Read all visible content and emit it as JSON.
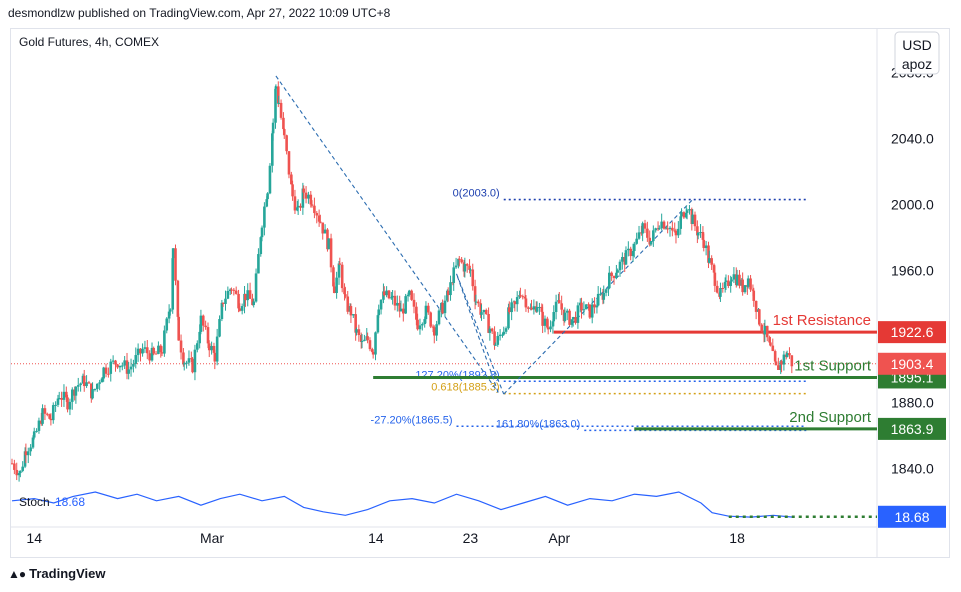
{
  "header": {
    "published": "desmondlzw published on TradingView.com, Apr 27, 2022 10:09 UTC+8"
  },
  "footer": {
    "brand": "TradingView",
    "logo_icon": "tradingview-logo-icon"
  },
  "chart_data": {
    "type": "candlestick",
    "title": "Gold Futures, 4h, COMEX",
    "currency": "USD",
    "scale_mode": "apoz",
    "y_ticks": [
      1840.0,
      1880.0,
      1920.0,
      1960.0,
      2000.0,
      2040.0,
      2080.0
    ],
    "y_tick_labels": [
      "1840.0",
      "1880.0",
      "1920.0",
      "1960.0",
      "2000.0",
      "2040.0",
      "2080.0"
    ],
    "ylim": [
      1833.5,
      2106.5
    ],
    "x_ticks": [
      {
        "label": "14",
        "x": 8
      },
      {
        "label": "Mar",
        "x": 72
      },
      {
        "label": "14",
        "x": 131
      },
      {
        "label": "23",
        "x": 165
      },
      {
        "label": "Apr",
        "x": 197
      },
      {
        "label": "18",
        "x": 261
      }
    ],
    "xlim": [
      0,
      311
    ],
    "price_path": [
      [
        0,
        1843
      ],
      [
        3,
        1837
      ],
      [
        5,
        1852
      ],
      [
        8,
        1858
      ],
      [
        11,
        1873
      ],
      [
        14,
        1870
      ],
      [
        17,
        1885
      ],
      [
        20,
        1880
      ],
      [
        23,
        1890
      ],
      [
        26,
        1893
      ],
      [
        29,
        1885
      ],
      [
        33,
        1900
      ],
      [
        38,
        1905
      ],
      [
        42,
        1900
      ],
      [
        47,
        1912
      ],
      [
        51,
        1908
      ],
      [
        54,
        1912
      ],
      [
        57,
        1940
      ],
      [
        58,
        1975
      ],
      [
        60,
        1920
      ],
      [
        62,
        1905
      ],
      [
        65,
        1902
      ],
      [
        68,
        1930
      ],
      [
        71,
        1915
      ],
      [
        73,
        1908
      ],
      [
        76,
        1942
      ],
      [
        79,
        1950
      ],
      [
        82,
        1940
      ],
      [
        84,
        1945
      ],
      [
        87,
        1940
      ],
      [
        90,
        1990
      ],
      [
        92,
        2010
      ],
      [
        94,
        2050
      ],
      [
        95,
        2072
      ],
      [
        96,
        2062
      ],
      [
        98,
        2040
      ],
      [
        101,
        2005
      ],
      [
        103,
        1995
      ],
      [
        105,
        2008
      ],
      [
        108,
        2003
      ],
      [
        111,
        1990
      ],
      [
        114,
        1975
      ],
      [
        116,
        1950
      ],
      [
        118,
        1962
      ],
      [
        120,
        1940
      ],
      [
        122,
        1935
      ],
      [
        124,
        1922
      ],
      [
        126,
        1915
      ],
      [
        128,
        1918
      ],
      [
        130,
        1912
      ],
      [
        132,
        1940
      ],
      [
        134,
        1945
      ],
      [
        137,
        1942
      ],
      [
        140,
        1935
      ],
      [
        143,
        1944
      ],
      [
        146,
        1928
      ],
      [
        149,
        1935
      ],
      [
        152,
        1925
      ],
      [
        155,
        1938
      ],
      [
        157,
        1945
      ],
      [
        159,
        1958
      ],
      [
        161,
        1966
      ],
      [
        163,
        1962
      ],
      [
        165,
        1960
      ],
      [
        167,
        1942
      ],
      [
        169,
        1935
      ],
      [
        172,
        1925
      ],
      [
        174,
        1915
      ],
      [
        177,
        1925
      ],
      [
        179,
        1935
      ],
      [
        181,
        1938
      ],
      [
        183,
        1948
      ],
      [
        185,
        1942
      ],
      [
        187,
        1935
      ],
      [
        189,
        1940
      ],
      [
        191,
        1930
      ],
      [
        193,
        1925
      ],
      [
        195,
        1935
      ],
      [
        197,
        1940
      ],
      [
        199,
        1932
      ],
      [
        202,
        1930
      ],
      [
        205,
        1938
      ],
      [
        208,
        1935
      ],
      [
        211,
        1942
      ],
      [
        213,
        1946
      ],
      [
        215,
        1955
      ],
      [
        218,
        1962
      ],
      [
        221,
        1968
      ],
      [
        224,
        1975
      ],
      [
        227,
        1985
      ],
      [
        230,
        1978
      ],
      [
        233,
        1990
      ],
      [
        236,
        1988
      ],
      [
        239,
        1980
      ],
      [
        241,
        1993
      ],
      [
        243,
        2000
      ],
      [
        245,
        1990
      ],
      [
        247,
        1983
      ],
      [
        249,
        1978
      ],
      [
        251,
        1965
      ],
      [
        253,
        1955
      ],
      [
        255,
        1945
      ],
      [
        257,
        1950
      ],
      [
        259,
        1958
      ],
      [
        261,
        1955
      ],
      [
        263,
        1950
      ],
      [
        265,
        1955
      ],
      [
        267,
        1945
      ],
      [
        269,
        1930
      ],
      [
        271,
        1922
      ],
      [
        273,
        1912
      ],
      [
        275,
        1900
      ],
      [
        277,
        1905
      ],
      [
        279,
        1910
      ],
      [
        281,
        1903
      ]
    ],
    "zigzag_lines": [
      {
        "x1": 95,
        "y1": 2078,
        "x2": 175,
        "y2": 1886
      },
      {
        "x1": 175,
        "y1": 1886,
        "x2": 160,
        "y2": 1958
      },
      {
        "x1": 160,
        "y1": 1958,
        "x2": 177,
        "y2": 1885
      },
      {
        "x1": 177,
        "y1": 1885,
        "x2": 245,
        "y2": 2003
      }
    ],
    "levels": [
      {
        "label": "1st Resistance",
        "price": 1922.6,
        "value_label": "1922.6",
        "color": "#e53935",
        "style": "solid",
        "x_start": 195,
        "x_end": 286
      },
      {
        "label": "1st Support",
        "price": 1895.1,
        "value_label": "1895.1",
        "color": "#2e7d32",
        "style": "solid",
        "x_start": 130,
        "x_end": 286
      },
      {
        "label": "2nd Support",
        "price": 1863.9,
        "value_label": "1863.9",
        "color": "#2e7d32",
        "style": "solid",
        "x_start": 224,
        "x_end": 286
      }
    ],
    "current_price": {
      "price": 1903.4,
      "label": "1903.4",
      "color": "#ef5350"
    },
    "fib_lines": [
      {
        "label": "0(2003.0)",
        "price": 2003.0,
        "color": "#1e40af",
        "x_start": 177,
        "x_end": 286
      },
      {
        "label": "127.20%(1892.8)",
        "price": 1892.8,
        "color": "#2563eb",
        "x_start": 177,
        "x_end": 286
      },
      {
        "label": "0.618(1885.3)",
        "price": 1885.3,
        "color": "#d4a017",
        "x_start": 177,
        "x_end": 286
      },
      {
        "label": "-27.20%(1865.5)",
        "price": 1865.5,
        "color": "#2563eb",
        "x_start": 160,
        "x_end": 286
      },
      {
        "label": "161.80%(1863.0)",
        "price": 1863.0,
        "color": "#2563eb",
        "x_start": 206,
        "x_end": 286
      }
    ],
    "stoch": {
      "label": "Stoch",
      "value": 18.68,
      "value_label": "18.68",
      "color": "#2962ff",
      "values": [
        [
          0,
          55
        ],
        [
          8,
          60
        ],
        [
          15,
          50
        ],
        [
          22,
          65
        ],
        [
          30,
          75
        ],
        [
          38,
          60
        ],
        [
          45,
          70
        ],
        [
          52,
          55
        ],
        [
          60,
          65
        ],
        [
          68,
          45
        ],
        [
          75,
          60
        ],
        [
          82,
          70
        ],
        [
          90,
          55
        ],
        [
          98,
          65
        ],
        [
          105,
          40
        ],
        [
          112,
          30
        ],
        [
          120,
          22
        ],
        [
          128,
          35
        ],
        [
          136,
          55
        ],
        [
          144,
          60
        ],
        [
          152,
          50
        ],
        [
          160,
          70
        ],
        [
          168,
          55
        ],
        [
          176,
          35
        ],
        [
          184,
          50
        ],
        [
          192,
          65
        ],
        [
          200,
          45
        ],
        [
          208,
          60
        ],
        [
          216,
          55
        ],
        [
          224,
          70
        ],
        [
          232,
          65
        ],
        [
          240,
          75
        ],
        [
          248,
          50
        ],
        [
          252,
          28
        ],
        [
          258,
          20
        ],
        [
          266,
          18
        ],
        [
          274,
          22
        ],
        [
          281,
          18
        ]
      ]
    }
  }
}
